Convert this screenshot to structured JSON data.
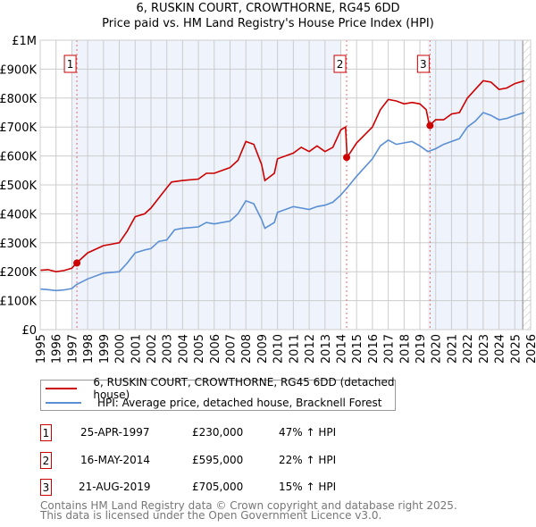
{
  "chart_data": {
    "type": "line",
    "title": "6, RUSKIN COURT, CROWTHORNE, RG45 6DD",
    "subtitle": "Price paid vs. HM Land Registry's House Price Index (HPI)",
    "xlim": [
      1995,
      2026
    ],
    "ylim": [
      0,
      1000000
    ],
    "x_ticks": [
      "1995",
      "1996",
      "1997",
      "1998",
      "1999",
      "2000",
      "2001",
      "2002",
      "2003",
      "2004",
      "2005",
      "2006",
      "2007",
      "2008",
      "2009",
      "2010",
      "2011",
      "2012",
      "2013",
      "2014",
      "2015",
      "2016",
      "2017",
      "2018",
      "2019",
      "2020",
      "2021",
      "2022",
      "2023",
      "2024",
      "2025",
      "2026"
    ],
    "y_ticks": [
      {
        "v": 0,
        "label": "£0"
      },
      {
        "v": 100000,
        "label": "£100K"
      },
      {
        "v": 200000,
        "label": "£200K"
      },
      {
        "v": 300000,
        "label": "£300K"
      },
      {
        "v": 400000,
        "label": "£400K"
      },
      {
        "v": 500000,
        "label": "£500K"
      },
      {
        "v": 600000,
        "label": "£600K"
      },
      {
        "v": 700000,
        "label": "£700K"
      },
      {
        "v": 800000,
        "label": "£800K"
      },
      {
        "v": 900000,
        "label": "£900K"
      },
      {
        "v": 1000000,
        "label": "£1M"
      }
    ],
    "grid": true,
    "series": [
      {
        "name": "6, RUSKIN COURT, CROWTHORNE, RG45 6DD (detached house)",
        "color": "#cc0000",
        "x": [
          1995,
          1995.5,
          1996,
          1996.5,
          1997,
          1997.3,
          1998,
          1999,
          2000,
          2000.5,
          2001,
          2001.6,
          2002,
          2002.5,
          2003,
          2003.3,
          2004,
          2005,
          2005.5,
          2006,
          2007,
          2007.5,
          2008,
          2008.5,
          2009,
          2009.2,
          2009.8,
          2010,
          2011,
          2011.5,
          2012,
          2012.5,
          2013,
          2013.5,
          2014,
          2014.3,
          2014.4,
          2015,
          2016,
          2016.5,
          2017,
          2017.5,
          2018,
          2018.5,
          2019,
          2019.4,
          2019.6,
          2020,
          2020.5,
          2021,
          2021.5,
          2022,
          2022.5,
          2023,
          2023.5,
          2024,
          2024.5,
          2025,
          2025.6
        ],
        "y": [
          205000,
          207000,
          200000,
          204000,
          212000,
          230000,
          265000,
          290000,
          300000,
          340000,
          390000,
          400000,
          420000,
          455000,
          490000,
          510000,
          515000,
          520000,
          540000,
          540000,
          560000,
          585000,
          650000,
          640000,
          570000,
          515000,
          540000,
          590000,
          610000,
          630000,
          615000,
          635000,
          615000,
          630000,
          690000,
          700000,
          595000,
          645000,
          700000,
          760000,
          795000,
          790000,
          780000,
          785000,
          780000,
          760000,
          705000,
          725000,
          725000,
          745000,
          750000,
          800000,
          830000,
          860000,
          855000,
          830000,
          835000,
          850000,
          860000
        ]
      },
      {
        "name": "HPI: Average price, detached house, Bracknell Forest",
        "color": "#5b8fd4",
        "x": [
          1995,
          1995.5,
          1996,
          1996.5,
          1997,
          1997.3,
          1998,
          1999,
          2000,
          2000.5,
          2001,
          2001.6,
          2002,
          2002.5,
          2003,
          2003.5,
          2004,
          2005,
          2005.5,
          2006,
          2007,
          2007.5,
          2008,
          2008.5,
          2009,
          2009.2,
          2009.8,
          2010,
          2011,
          2011.5,
          2012,
          2012.5,
          2013,
          2013.5,
          2014,
          2014.4,
          2015,
          2016,
          2016.5,
          2017,
          2017.5,
          2018,
          2018.5,
          2019,
          2019.5,
          2020,
          2020.5,
          2021,
          2021.5,
          2022,
          2022.5,
          2023,
          2023.5,
          2024,
          2024.5,
          2025,
          2025.6
        ],
        "y": [
          140000,
          138000,
          135000,
          137000,
          142000,
          156000,
          175000,
          195000,
          200000,
          230000,
          265000,
          275000,
          280000,
          305000,
          310000,
          345000,
          350000,
          355000,
          370000,
          365000,
          375000,
          400000,
          445000,
          435000,
          380000,
          350000,
          370000,
          405000,
          425000,
          420000,
          415000,
          425000,
          430000,
          440000,
          465000,
          490000,
          530000,
          590000,
          635000,
          655000,
          640000,
          645000,
          650000,
          635000,
          615000,
          625000,
          640000,
          650000,
          660000,
          700000,
          720000,
          750000,
          740000,
          725000,
          730000,
          740000,
          750000
        ]
      }
    ],
    "sales": [
      {
        "id": "1",
        "x": 1997.32,
        "price": 230000,
        "date": "25-APR-1997",
        "price_label": "£230,000",
        "hpi": "47% ↑ HPI"
      },
      {
        "id": "2",
        "x": 2014.37,
        "price": 595000,
        "date": "16-MAY-2014",
        "price_label": "£595,000",
        "hpi": "22% ↑ HPI"
      },
      {
        "id": "3",
        "x": 2019.64,
        "price": 705000,
        "date": "21-AUG-2019",
        "price_label": "£705,000",
        "hpi": "15% ↑ HPI"
      }
    ],
    "shaded_ranges": [
      [
        1997,
        2014
      ],
      [
        2019.5,
        2025.5
      ]
    ],
    "hatched_from": 2025.5,
    "legend_position": "bottom"
  },
  "footer": {
    "line1": "Contains HM Land Registry data © Crown copyright and database right 2025.",
    "line2": "This data is licensed under the Open Government Licence v3.0."
  }
}
